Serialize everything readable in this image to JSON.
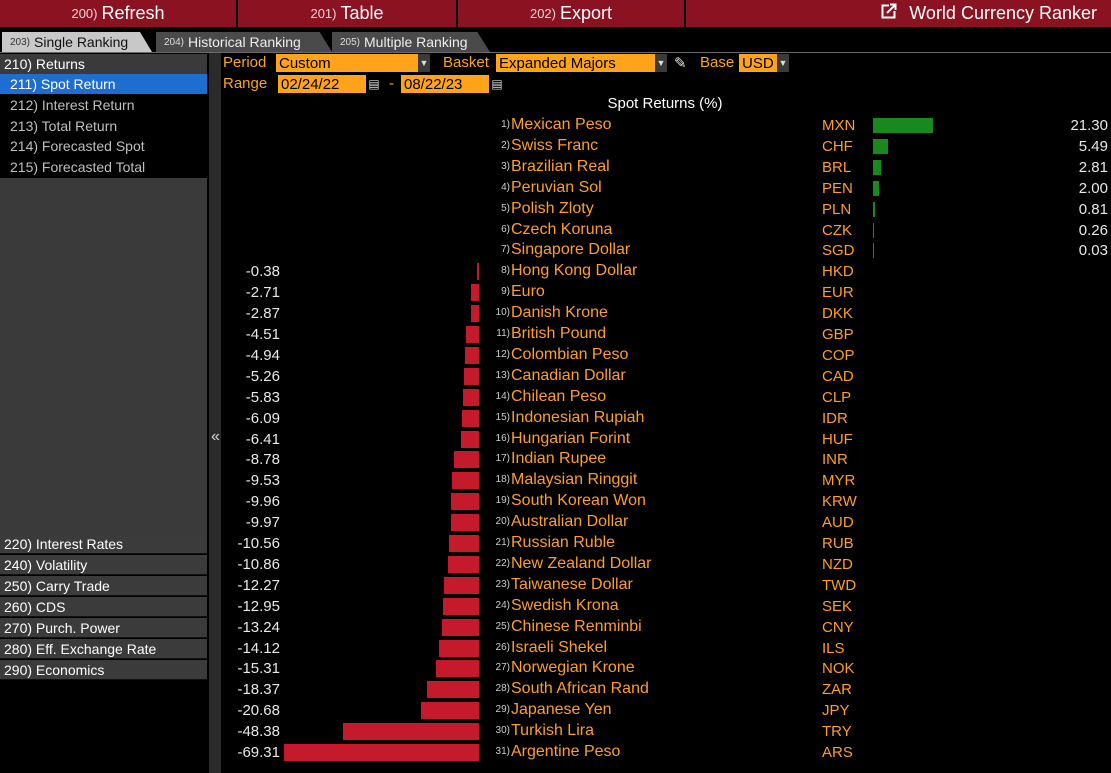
{
  "toolbar": {
    "refresh_num": "200)",
    "refresh_label": "Refresh",
    "table_num": "201)",
    "table_label": "Table",
    "export_num": "202)",
    "export_label": "Export",
    "title": "World Currency Ranker"
  },
  "tabs": [
    {
      "num": "203)",
      "label": "Single Ranking"
    },
    {
      "num": "204)",
      "label": "Historical Ranking"
    },
    {
      "num": "205)",
      "label": "Multiple Ranking"
    }
  ],
  "sidebar": {
    "returns_header": "210) Returns",
    "sub_items": [
      {
        "label": "211) Spot Return"
      },
      {
        "label": "212) Interest Return"
      },
      {
        "label": "213) Total Return"
      },
      {
        "label": "214) Forecasted Spot"
      },
      {
        "label": "215) Forecasted Total"
      }
    ],
    "categories": [
      {
        "label": "220) Interest Rates"
      },
      {
        "label": "240) Volatility"
      },
      {
        "label": "250) Carry Trade"
      },
      {
        "label": "260) CDS"
      },
      {
        "label": "270) Purch. Power"
      },
      {
        "label": "280) Eff. Exchange Rate"
      },
      {
        "label": "290) Economics"
      }
    ],
    "collapse_glyph": "«"
  },
  "controls": {
    "period_label": "Period",
    "period_value": "Custom",
    "basket_label": "Basket",
    "basket_value": "Expanded Majors",
    "base_label": "Base",
    "base_value": "USD",
    "range_label": "Range",
    "range_start": "02/24/22",
    "range_sep": "-",
    "range_end": "08/22/23"
  },
  "chart_title": "Spot Returns (%)",
  "colors": {
    "positive_bar": "#19891f",
    "negative_bar": "#c41a2b",
    "accent_orange": "#ffa31a",
    "toolbar_red": "#8a1221",
    "selected_blue": "#1e6dd0"
  },
  "chart_data": {
    "type": "bar",
    "orientation": "horizontal",
    "title": "Spot Returns (%)",
    "rows": [
      {
        "rank": "1)",
        "name": "Mexican Peso",
        "code": "MXN",
        "value": 21.3,
        "display": "21.30"
      },
      {
        "rank": "2)",
        "name": "Swiss Franc",
        "code": "CHF",
        "value": 5.49,
        "display": "5.49"
      },
      {
        "rank": "3)",
        "name": "Brazilian Real",
        "code": "BRL",
        "value": 2.81,
        "display": "2.81"
      },
      {
        "rank": "4)",
        "name": "Peruvian Sol",
        "code": "PEN",
        "value": 2.0,
        "display": "2.00"
      },
      {
        "rank": "5)",
        "name": "Polish Zloty",
        "code": "PLN",
        "value": 0.81,
        "display": "0.81"
      },
      {
        "rank": "6)",
        "name": "Czech Koruna",
        "code": "CZK",
        "value": 0.26,
        "display": "0.26"
      },
      {
        "rank": "7)",
        "name": "Singapore Dollar",
        "code": "SGD",
        "value": 0.03,
        "display": "0.03"
      },
      {
        "rank": "8)",
        "name": "Hong Kong Dollar",
        "code": "HKD",
        "value": -0.38,
        "display": "-0.38"
      },
      {
        "rank": "9)",
        "name": "Euro",
        "code": "EUR",
        "value": -2.71,
        "display": "-2.71"
      },
      {
        "rank": "10)",
        "name": "Danish Krone",
        "code": "DKK",
        "value": -2.87,
        "display": "-2.87"
      },
      {
        "rank": "11)",
        "name": "British Pound",
        "code": "GBP",
        "value": -4.51,
        "display": "-4.51"
      },
      {
        "rank": "12)",
        "name": "Colombian Peso",
        "code": "COP",
        "value": -4.94,
        "display": "-4.94"
      },
      {
        "rank": "13)",
        "name": "Canadian Dollar",
        "code": "CAD",
        "value": -5.26,
        "display": "-5.26"
      },
      {
        "rank": "14)",
        "name": "Chilean Peso",
        "code": "CLP",
        "value": -5.83,
        "display": "-5.83"
      },
      {
        "rank": "15)",
        "name": "Indonesian Rupiah",
        "code": "IDR",
        "value": -6.09,
        "display": "-6.09"
      },
      {
        "rank": "16)",
        "name": "Hungarian Forint",
        "code": "HUF",
        "value": -6.41,
        "display": "-6.41"
      },
      {
        "rank": "17)",
        "name": "Indian Rupee",
        "code": "INR",
        "value": -8.78,
        "display": "-8.78"
      },
      {
        "rank": "18)",
        "name": "Malaysian Ringgit",
        "code": "MYR",
        "value": -9.53,
        "display": "-9.53"
      },
      {
        "rank": "19)",
        "name": "South Korean Won",
        "code": "KRW",
        "value": -9.96,
        "display": "-9.96"
      },
      {
        "rank": "20)",
        "name": "Australian Dollar",
        "code": "AUD",
        "value": -9.97,
        "display": "-9.97"
      },
      {
        "rank": "21)",
        "name": "Russian Ruble",
        "code": "RUB",
        "value": -10.56,
        "display": "-10.56"
      },
      {
        "rank": "22)",
        "name": "New Zealand Dollar",
        "code": "NZD",
        "value": -10.86,
        "display": "-10.86"
      },
      {
        "rank": "23)",
        "name": "Taiwanese Dollar",
        "code": "TWD",
        "value": -12.27,
        "display": "-12.27"
      },
      {
        "rank": "24)",
        "name": "Swedish Krona",
        "code": "SEK",
        "value": -12.95,
        "display": "-12.95"
      },
      {
        "rank": "25)",
        "name": "Chinese Renminbi",
        "code": "CNY",
        "value": -13.24,
        "display": "-13.24"
      },
      {
        "rank": "26)",
        "name": "Israeli Shekel",
        "code": "ILS",
        "value": -14.12,
        "display": "-14.12"
      },
      {
        "rank": "27)",
        "name": "Norwegian Krone",
        "code": "NOK",
        "value": -15.31,
        "display": "-15.31"
      },
      {
        "rank": "28)",
        "name": "South African Rand",
        "code": "ZAR",
        "value": -18.37,
        "display": "-18.37"
      },
      {
        "rank": "29)",
        "name": "Japanese Yen",
        "code": "JPY",
        "value": -20.68,
        "display": "-20.68"
      },
      {
        "rank": "30)",
        "name": "Turkish Lira",
        "code": "TRY",
        "value": -48.38,
        "display": "-48.38"
      },
      {
        "rank": "31)",
        "name": "Argentine Peso",
        "code": "ARS",
        "value": -69.31,
        "display": "-69.31"
      }
    ]
  }
}
